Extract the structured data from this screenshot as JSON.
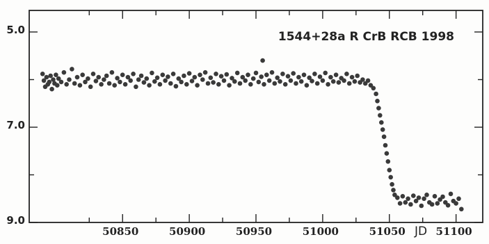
{
  "chart_data": {
    "type": "scatter",
    "title": "1544+28a  R CrB  RCB  1998",
    "xlabel": "JD",
    "ylabel": "",
    "xlim": [
      50780,
      51120
    ],
    "ylim": [
      5.0,
      9.0
    ],
    "y_inverted": true,
    "grid": false,
    "x_ticks": [
      50850,
      50900,
      50950,
      51000,
      51050,
      51100
    ],
    "x_tick_labels": [
      "50850",
      "50900",
      "50950",
      "51000",
      "51050",
      "51100"
    ],
    "y_ticks": [
      5.0,
      7.0,
      9.0
    ],
    "y_tick_labels": [
      "5.0",
      "7.0",
      "9.0"
    ],
    "series": [
      {
        "name": "",
        "color": "#3a3a3a",
        "points": [
          [
            50790,
            5.88
          ],
          [
            50791,
            6.02
          ],
          [
            50792,
            6.15
          ],
          [
            50793,
            5.95
          ],
          [
            50794,
            6.1
          ],
          [
            50795,
            6.05
          ],
          [
            50796,
            5.92
          ],
          [
            50797,
            6.2
          ],
          [
            50798,
            6.0
          ],
          [
            50799,
            6.08
          ],
          [
            50800,
            5.9
          ],
          [
            50801,
            6.12
          ],
          [
            50802,
            5.98
          ],
          [
            50804,
            6.05
          ],
          [
            50806,
            5.85
          ],
          [
            50808,
            6.1
          ],
          [
            50810,
            6.0
          ],
          [
            50812,
            5.78
          ],
          [
            50814,
            6.08
          ],
          [
            50816,
            5.95
          ],
          [
            50818,
            6.12
          ],
          [
            50820,
            5.9
          ],
          [
            50822,
            6.05
          ],
          [
            50824,
            5.98
          ],
          [
            50826,
            6.15
          ],
          [
            50828,
            5.88
          ],
          [
            50830,
            6.03
          ],
          [
            50832,
            5.95
          ],
          [
            50834,
            6.1
          ],
          [
            50836,
            6.0
          ],
          [
            50838,
            5.92
          ],
          [
            50840,
            6.08
          ],
          [
            50842,
            5.85
          ],
          [
            50844,
            6.12
          ],
          [
            50846,
            5.97
          ],
          [
            50848,
            6.05
          ],
          [
            50850,
            5.9
          ],
          [
            50852,
            6.1
          ],
          [
            50854,
            5.95
          ],
          [
            50856,
            6.02
          ],
          [
            50858,
            5.88
          ],
          [
            50860,
            6.15
          ],
          [
            50862,
            6.0
          ],
          [
            50864,
            5.92
          ],
          [
            50866,
            6.06
          ],
          [
            50868,
            5.98
          ],
          [
            50870,
            6.12
          ],
          [
            50872,
            5.86
          ],
          [
            50874,
            6.04
          ],
          [
            50876,
            5.96
          ],
          [
            50878,
            6.1
          ],
          [
            50880,
            5.9
          ],
          [
            50882,
            6.02
          ],
          [
            50884,
            5.94
          ],
          [
            50886,
            6.08
          ],
          [
            50888,
            5.88
          ],
          [
            50890,
            6.14
          ],
          [
            50892,
            5.98
          ],
          [
            50894,
            6.05
          ],
          [
            50896,
            5.92
          ],
          [
            50898,
            6.1
          ],
          [
            50900,
            5.87
          ],
          [
            50902,
            6.03
          ],
          [
            50904,
            5.95
          ],
          [
            50906,
            6.12
          ],
          [
            50908,
            5.9
          ],
          [
            50910,
            6.0
          ],
          [
            50912,
            5.85
          ],
          [
            50914,
            6.08
          ],
          [
            50916,
            5.96
          ],
          [
            50918,
            6.06
          ],
          [
            50920,
            5.88
          ],
          [
            50922,
            6.1
          ],
          [
            50924,
            5.93
          ],
          [
            50926,
            6.02
          ],
          [
            50928,
            5.89
          ],
          [
            50930,
            6.12
          ],
          [
            50932,
            5.97
          ],
          [
            50934,
            6.04
          ],
          [
            50936,
            5.86
          ],
          [
            50938,
            6.08
          ],
          [
            50940,
            5.95
          ],
          [
            50942,
            6.02
          ],
          [
            50944,
            5.9
          ],
          [
            50946,
            6.1
          ],
          [
            50948,
            5.98
          ],
          [
            50950,
            5.86
          ],
          [
            50952,
            6.05
          ],
          [
            50954,
            5.94
          ],
          [
            50955,
            5.6
          ],
          [
            50956,
            6.1
          ],
          [
            50958,
            5.9
          ],
          [
            50960,
            6.02
          ],
          [
            50962,
            5.85
          ],
          [
            50964,
            6.08
          ],
          [
            50966,
            5.96
          ],
          [
            50968,
            6.04
          ],
          [
            50970,
            5.88
          ],
          [
            50972,
            6.1
          ],
          [
            50974,
            5.93
          ],
          [
            50976,
            6.02
          ],
          [
            50978,
            5.87
          ],
          [
            50980,
            6.08
          ],
          [
            50982,
            5.95
          ],
          [
            50984,
            6.04
          ],
          [
            50986,
            5.9
          ],
          [
            50988,
            6.12
          ],
          [
            50990,
            5.96
          ],
          [
            50992,
            6.03
          ],
          [
            50994,
            5.88
          ],
          [
            50996,
            6.08
          ],
          [
            50998,
            5.94
          ],
          [
            51000,
            6.02
          ],
          [
            51002,
            5.86
          ],
          [
            51004,
            6.1
          ],
          [
            51006,
            5.95
          ],
          [
            51008,
            6.04
          ],
          [
            51010,
            5.9
          ],
          [
            51012,
            6.06
          ],
          [
            51014,
            5.97
          ],
          [
            51016,
            6.02
          ],
          [
            51018,
            5.88
          ],
          [
            51020,
            6.08
          ],
          [
            51022,
            5.95
          ],
          [
            51024,
            6.04
          ],
          [
            51026,
            5.92
          ],
          [
            51028,
            6.06
          ],
          [
            51030,
            6.0
          ],
          [
            51032,
            6.08
          ],
          [
            51034,
            6.02
          ],
          [
            51036,
            6.12
          ],
          [
            51038,
            6.18
          ],
          [
            51040,
            6.3
          ],
          [
            51041,
            6.45
          ],
          [
            51042,
            6.6
          ],
          [
            51043,
            6.75
          ],
          [
            51044,
            6.9
          ],
          [
            51045,
            7.05
          ],
          [
            51046,
            7.2
          ],
          [
            51047,
            7.38
          ],
          [
            51048,
            7.55
          ],
          [
            51049,
            7.72
          ],
          [
            51050,
            7.9
          ],
          [
            51051,
            8.05
          ],
          [
            51052,
            8.2
          ],
          [
            51053,
            8.32
          ],
          [
            51054,
            8.42
          ],
          [
            51056,
            8.48
          ],
          [
            51058,
            8.6
          ],
          [
            51060,
            8.45
          ],
          [
            51062,
            8.58
          ],
          [
            51064,
            8.5
          ],
          [
            51066,
            8.62
          ],
          [
            51068,
            8.44
          ],
          [
            51070,
            8.55
          ],
          [
            51072,
            8.48
          ],
          [
            51074,
            8.65
          ],
          [
            51076,
            8.5
          ],
          [
            51078,
            8.42
          ],
          [
            51080,
            8.58
          ],
          [
            51082,
            8.62
          ],
          [
            51084,
            8.45
          ],
          [
            51086,
            8.6
          ],
          [
            51088,
            8.52
          ],
          [
            51090,
            8.46
          ],
          [
            51092,
            8.58
          ],
          [
            51094,
            8.64
          ],
          [
            51096,
            8.4
          ],
          [
            51098,
            8.55
          ],
          [
            51100,
            8.6
          ],
          [
            51102,
            8.5
          ],
          [
            51104,
            8.72
          ]
        ]
      }
    ]
  }
}
